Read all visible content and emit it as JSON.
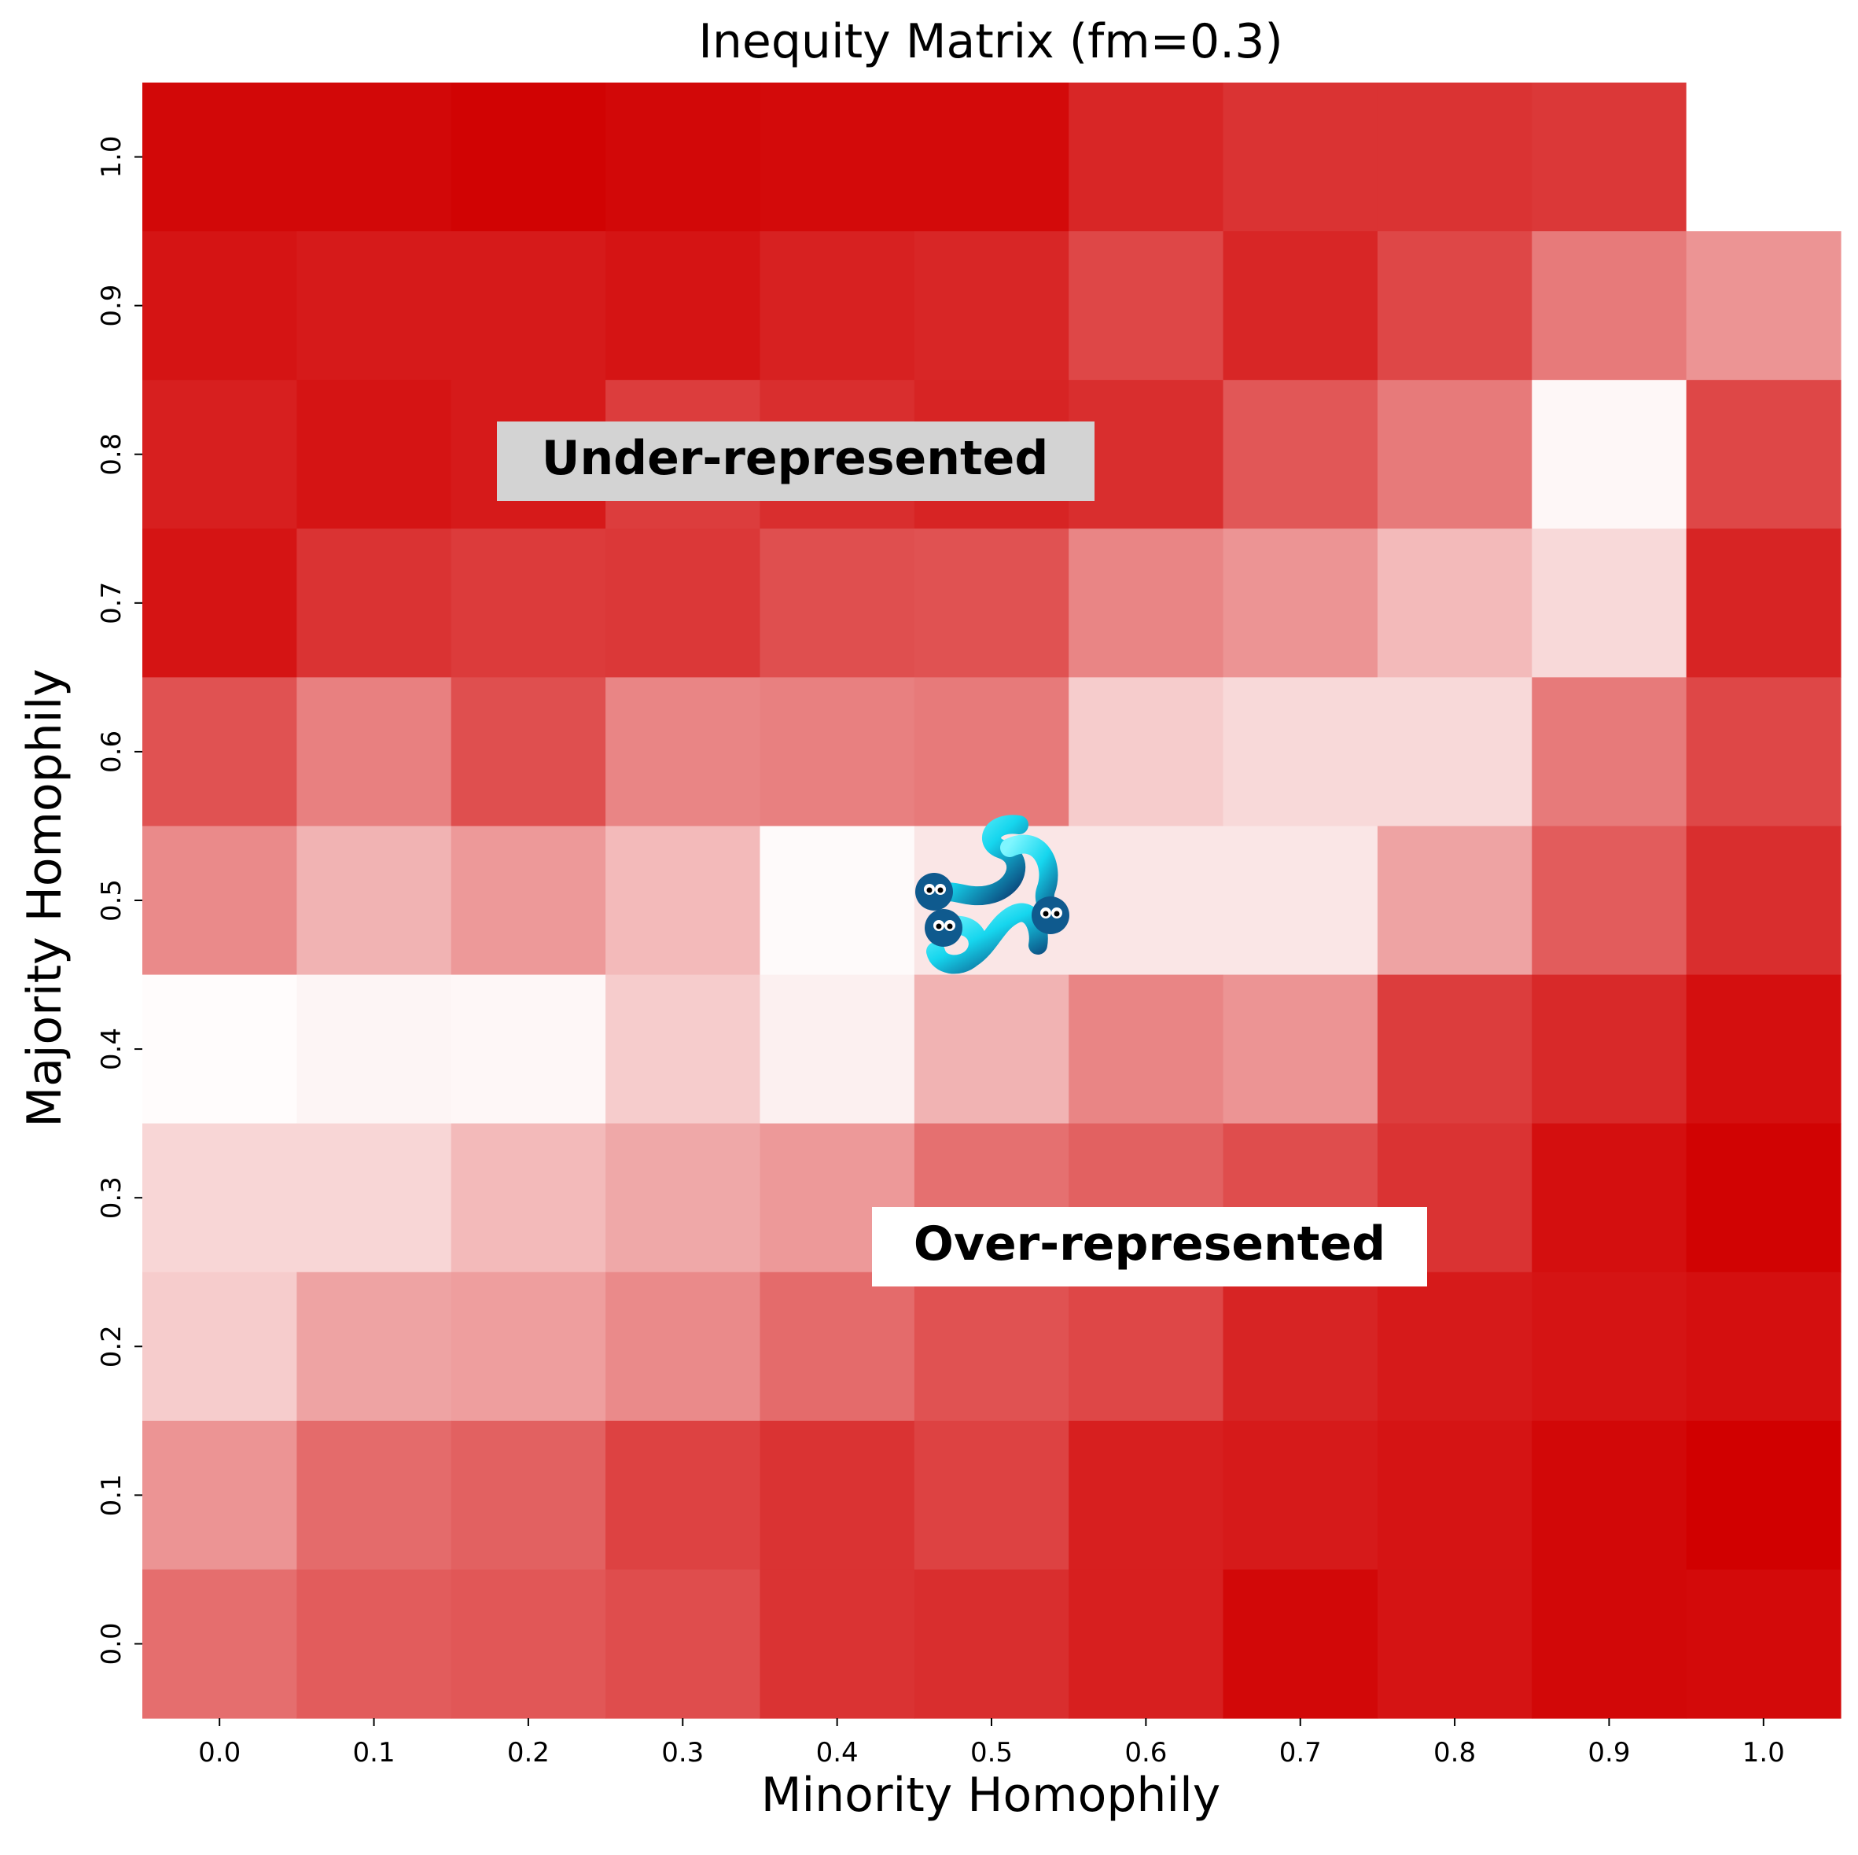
{
  "chart_data": {
    "type": "heatmap",
    "title": "Inequity Matrix (fm=0.3)",
    "xlabel": "Minority Homophily",
    "ylabel": "Majority Homophily",
    "x_ticks": [
      "0.0",
      "0.1",
      "0.2",
      "0.3",
      "0.4",
      "0.5",
      "0.6",
      "0.7",
      "0.8",
      "0.9",
      "1.0"
    ],
    "y_ticks": [
      "0.0",
      "0.1",
      "0.2",
      "0.3",
      "0.4",
      "0.5",
      "0.6",
      "0.7",
      "0.8",
      "0.9",
      "1.0"
    ],
    "colorscale": {
      "low": "#ffffff",
      "high": "#d10000"
    },
    "colorbar": false,
    "grid": false,
    "rows_top_to_bottom_majority": [
      1.0,
      0.9,
      0.8,
      0.7,
      0.6,
      0.5,
      0.4,
      0.3,
      0.2,
      0.1,
      0.0
    ],
    "intensity_rows": [
      [
        0.97,
        0.97,
        0.99,
        0.97,
        0.96,
        0.96,
        0.85,
        0.8,
        0.8,
        0.78,
        0.0
      ],
      [
        0.92,
        0.9,
        0.9,
        0.92,
        0.87,
        0.85,
        0.72,
        0.85,
        0.72,
        0.52,
        0.42
      ],
      [
        0.88,
        0.92,
        0.9,
        0.76,
        0.82,
        0.86,
        0.82,
        0.66,
        0.52,
        0.03,
        0.72
      ],
      [
        0.92,
        0.8,
        0.77,
        0.78,
        0.69,
        0.68,
        0.48,
        0.42,
        0.27,
        0.15,
        0.86
      ],
      [
        0.68,
        0.5,
        0.69,
        0.48,
        0.5,
        0.52,
        0.2,
        0.15,
        0.15,
        0.52,
        0.72
      ],
      [
        0.46,
        0.3,
        0.4,
        0.27,
        0.02,
        0.1,
        0.1,
        0.1,
        0.36,
        0.64,
        0.82
      ],
      [
        0.01,
        0.04,
        0.03,
        0.2,
        0.06,
        0.3,
        0.48,
        0.42,
        0.76,
        0.84,
        0.94
      ],
      [
        0.16,
        0.16,
        0.27,
        0.34,
        0.4,
        0.56,
        0.62,
        0.7,
        0.8,
        0.94,
        0.99
      ],
      [
        0.2,
        0.36,
        0.38,
        0.46,
        0.58,
        0.68,
        0.72,
        0.86,
        0.9,
        0.92,
        0.94
      ],
      [
        0.42,
        0.58,
        0.62,
        0.74,
        0.8,
        0.74,
        0.88,
        0.9,
        0.92,
        0.97,
        1.0
      ],
      [
        0.57,
        0.64,
        0.66,
        0.7,
        0.8,
        0.82,
        0.88,
        0.97,
        0.92,
        0.97,
        0.96
      ]
    ],
    "annotations": [
      {
        "text": "Under-represented",
        "background": "#d3d3d3"
      },
      {
        "text": "Over-represented",
        "background": "#ffffff"
      }
    ],
    "watermark": {
      "icon": "three-blue-worms-icon"
    }
  }
}
